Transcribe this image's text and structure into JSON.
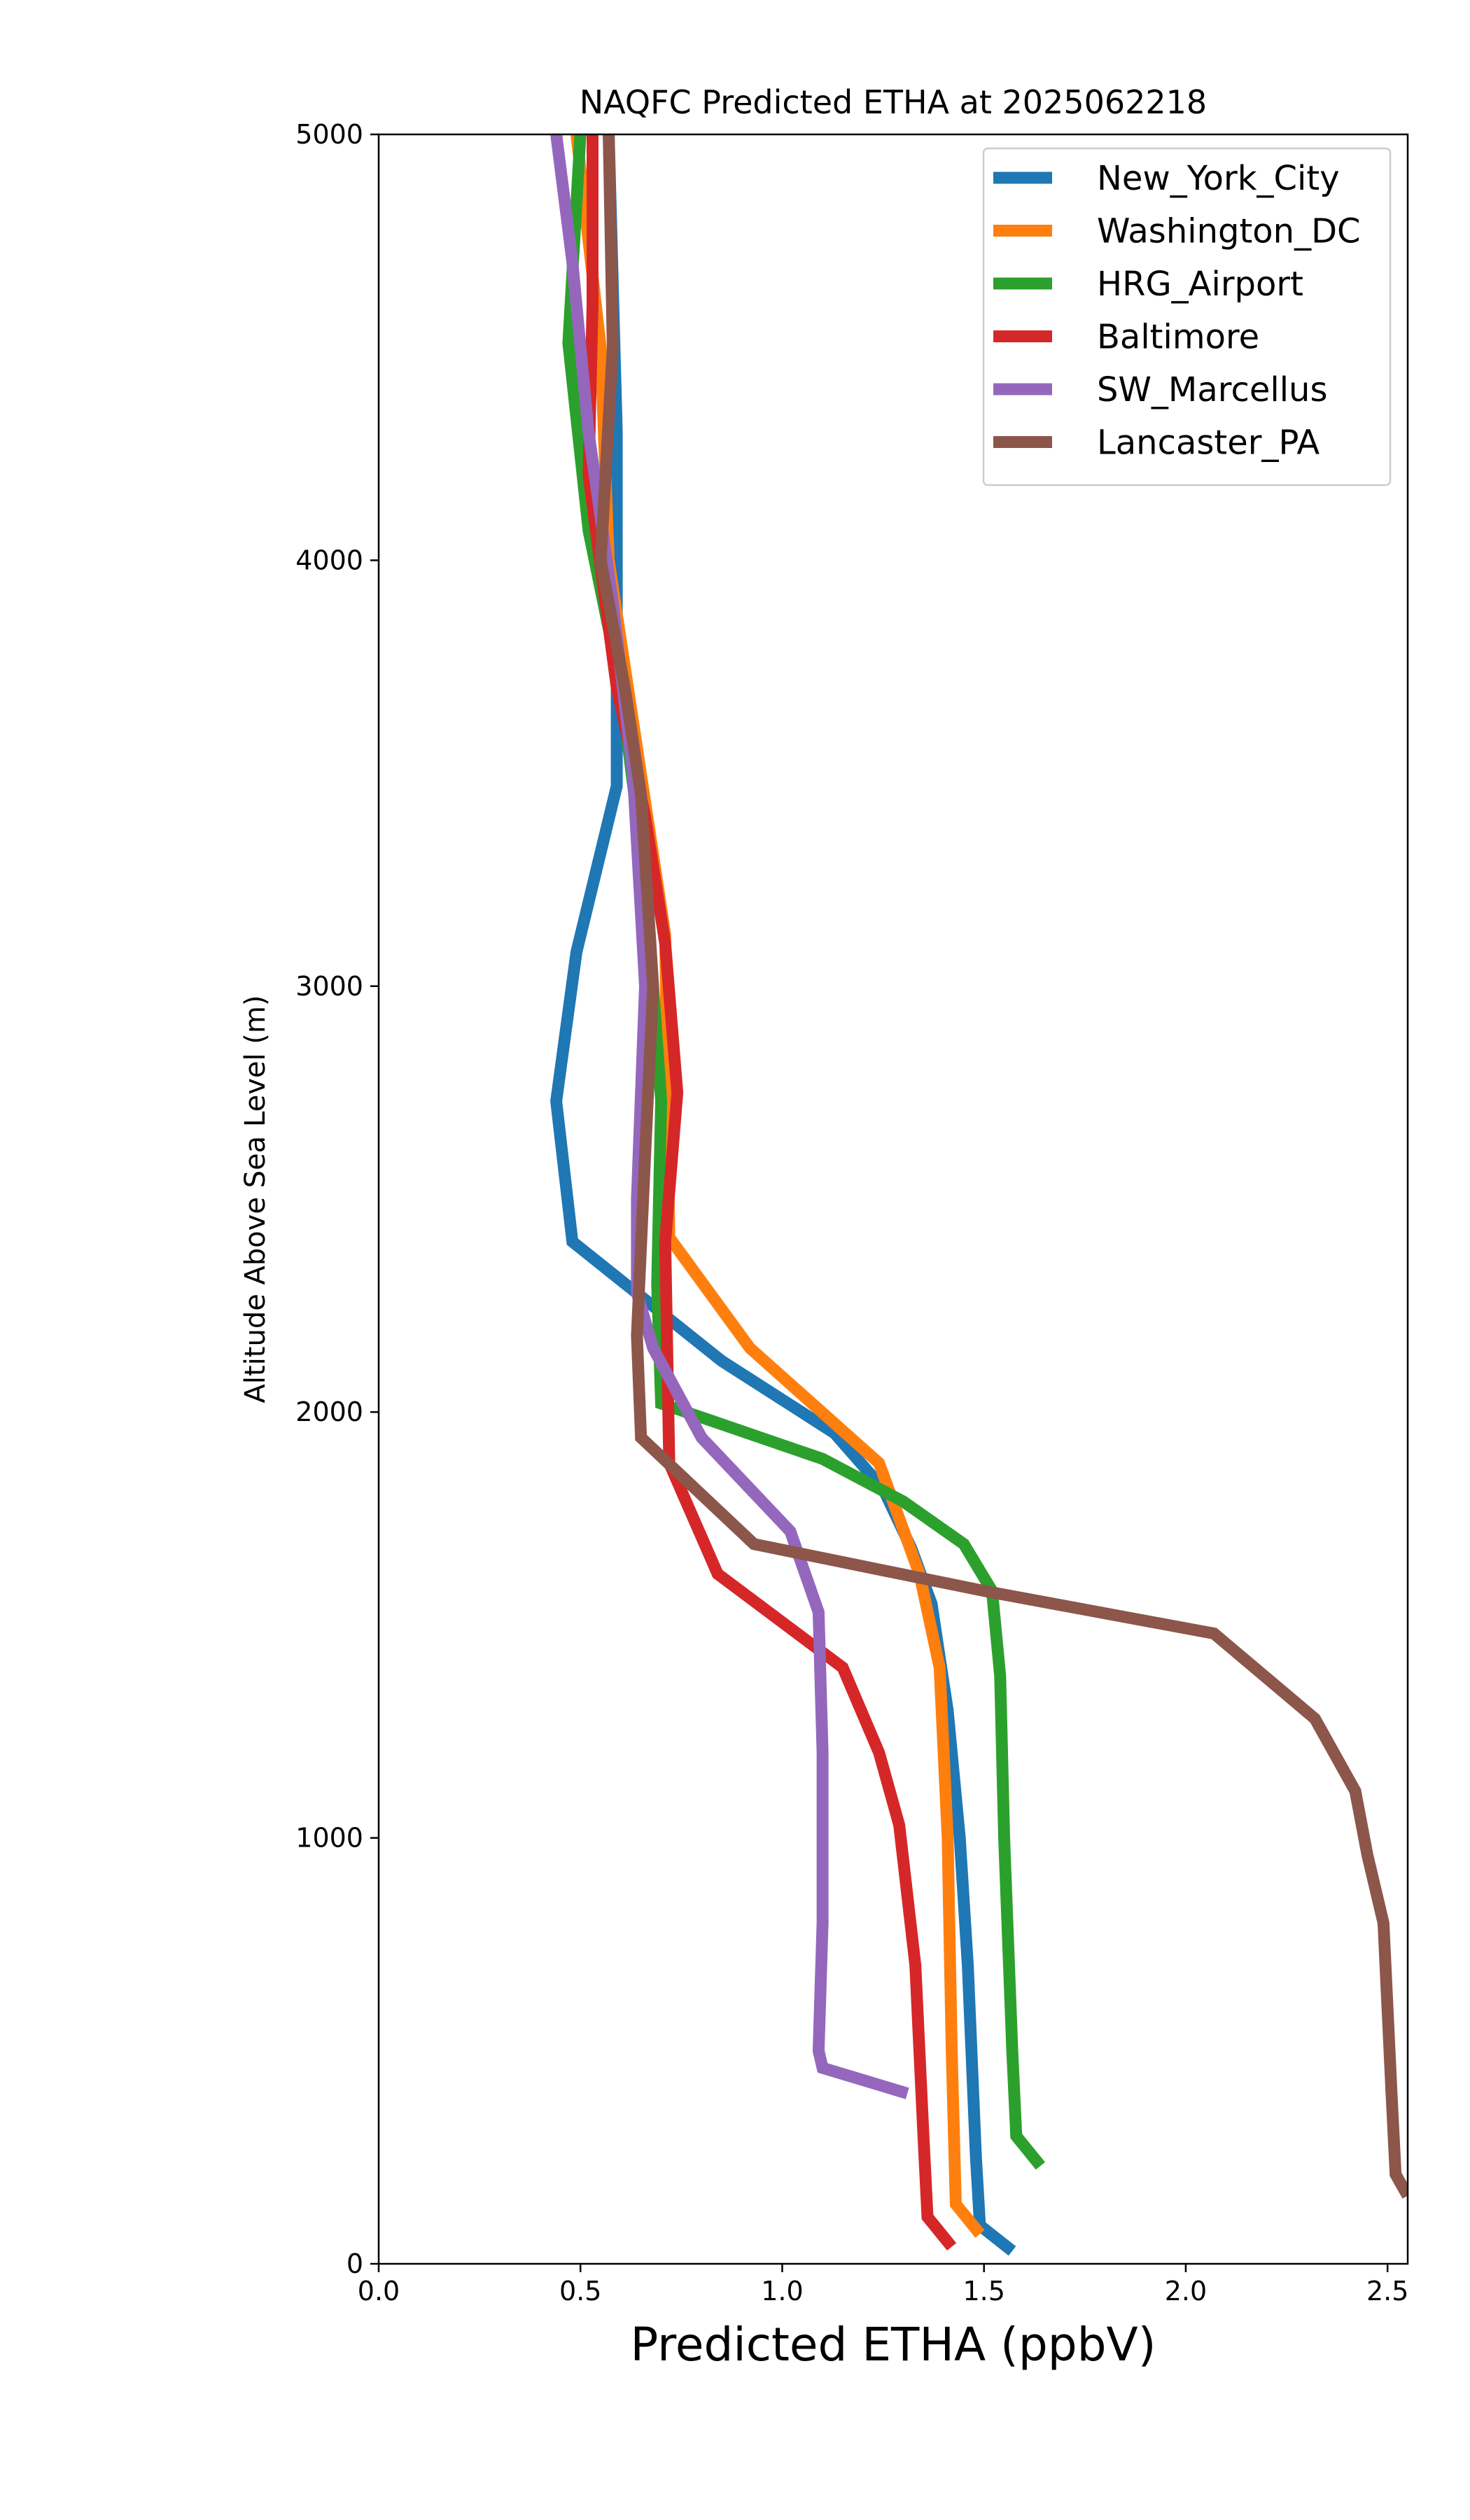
{
  "chart_data": {
    "type": "line",
    "title": "NAQFC Predicted ETHA at 2025062218",
    "xlabel": "Predicted ETHA (ppbV)",
    "ylabel": "Altitude Above Sea Level (m)",
    "xlim": [
      0,
      2.55
    ],
    "ylim": [
      0,
      5000
    ],
    "xticks": [
      "0.0",
      "0.5",
      "1.0",
      "1.5",
      "2.0",
      "2.5"
    ],
    "yticks": [
      "0",
      "1000",
      "2000",
      "3000",
      "4000",
      "5000"
    ],
    "grid": false,
    "legend_position": "top-right",
    "series": [
      {
        "name": "New_York_City",
        "color": "#1f77b4",
        "points": [
          [
            1.57,
            30
          ],
          [
            1.49,
            90
          ],
          [
            1.48,
            250
          ],
          [
            1.46,
            700
          ],
          [
            1.44,
            1000
          ],
          [
            1.41,
            1300
          ],
          [
            1.37,
            1550
          ],
          [
            1.32,
            1680
          ],
          [
            1.25,
            1820
          ],
          [
            1.13,
            1950
          ],
          [
            0.85,
            2120
          ],
          [
            0.48,
            2400
          ],
          [
            0.44,
            2730
          ],
          [
            0.49,
            3080
          ],
          [
            0.59,
            3470
          ],
          [
            0.59,
            4300
          ],
          [
            0.57,
            5000
          ]
        ]
      },
      {
        "name": "Washington_DC",
        "color": "#ff7f0e",
        "points": [
          [
            1.49,
            70
          ],
          [
            1.43,
            140
          ],
          [
            1.42,
            500
          ],
          [
            1.41,
            1000
          ],
          [
            1.4,
            1200
          ],
          [
            1.39,
            1400
          ],
          [
            1.34,
            1620
          ],
          [
            1.24,
            1880
          ],
          [
            0.92,
            2150
          ],
          [
            0.72,
            2410
          ],
          [
            0.71,
            3120
          ],
          [
            0.64,
            3560
          ],
          [
            0.57,
            4000
          ],
          [
            0.55,
            4500
          ],
          [
            0.49,
            5000
          ]
        ]
      },
      {
        "name": "HRG_Airport",
        "color": "#2ca02c",
        "points": [
          [
            1.64,
            230
          ],
          [
            1.58,
            300
          ],
          [
            1.57,
            500
          ],
          [
            1.55,
            1000
          ],
          [
            1.54,
            1380
          ],
          [
            1.52,
            1580
          ],
          [
            1.45,
            1690
          ],
          [
            1.3,
            1790
          ],
          [
            1.1,
            1890
          ],
          [
            0.7,
            2020
          ],
          [
            0.69,
            2300
          ],
          [
            0.7,
            2730
          ],
          [
            0.68,
            3000
          ],
          [
            0.64,
            3400
          ],
          [
            0.6,
            3700
          ],
          [
            0.52,
            4070
          ],
          [
            0.47,
            4510
          ],
          [
            0.5,
            5000
          ]
        ]
      },
      {
        "name": "Baltimore",
        "color": "#d62728",
        "points": [
          [
            1.42,
            40
          ],
          [
            1.36,
            110
          ],
          [
            1.35,
            300
          ],
          [
            1.33,
            700
          ],
          [
            1.29,
            1030
          ],
          [
            1.24,
            1200
          ],
          [
            1.15,
            1400
          ],
          [
            0.84,
            1620
          ],
          [
            0.72,
            1880
          ],
          [
            0.71,
            2400
          ],
          [
            0.74,
            2750
          ],
          [
            0.71,
            3100
          ],
          [
            0.66,
            3400
          ],
          [
            0.59,
            3700
          ],
          [
            0.52,
            4200
          ],
          [
            0.53,
            4600
          ],
          [
            0.53,
            5000
          ]
        ]
      },
      {
        "name": "SW_Marcellus",
        "color": "#9467bd",
        "points": [
          [
            1.31,
            400
          ],
          [
            1.1,
            460
          ],
          [
            1.09,
            500
          ],
          [
            1.1,
            800
          ],
          [
            1.1,
            1200
          ],
          [
            1.09,
            1530
          ],
          [
            1.02,
            1720
          ],
          [
            0.8,
            1940
          ],
          [
            0.68,
            2150
          ],
          [
            0.64,
            2280
          ],
          [
            0.64,
            2500
          ],
          [
            0.66,
            3000
          ],
          [
            0.63,
            3500
          ],
          [
            0.58,
            3900
          ],
          [
            0.52,
            4300
          ],
          [
            0.48,
            4700
          ],
          [
            0.44,
            5000
          ]
        ]
      },
      {
        "name": "Lancaster_PA",
        "color": "#8c564b",
        "points": [
          [
            2.55,
            160
          ],
          [
            2.52,
            210
          ],
          [
            2.51,
            400
          ],
          [
            2.49,
            800
          ],
          [
            2.45,
            960
          ],
          [
            2.42,
            1110
          ],
          [
            2.32,
            1280
          ],
          [
            2.07,
            1480
          ],
          [
            1.5,
            1580
          ],
          [
            0.93,
            1690
          ],
          [
            0.65,
            1940
          ],
          [
            0.64,
            2180
          ],
          [
            0.66,
            2600
          ],
          [
            0.68,
            3000
          ],
          [
            0.65,
            3450
          ],
          [
            0.61,
            3700
          ],
          [
            0.55,
            4000
          ],
          [
            0.58,
            4500
          ],
          [
            0.57,
            5000
          ]
        ]
      }
    ]
  }
}
